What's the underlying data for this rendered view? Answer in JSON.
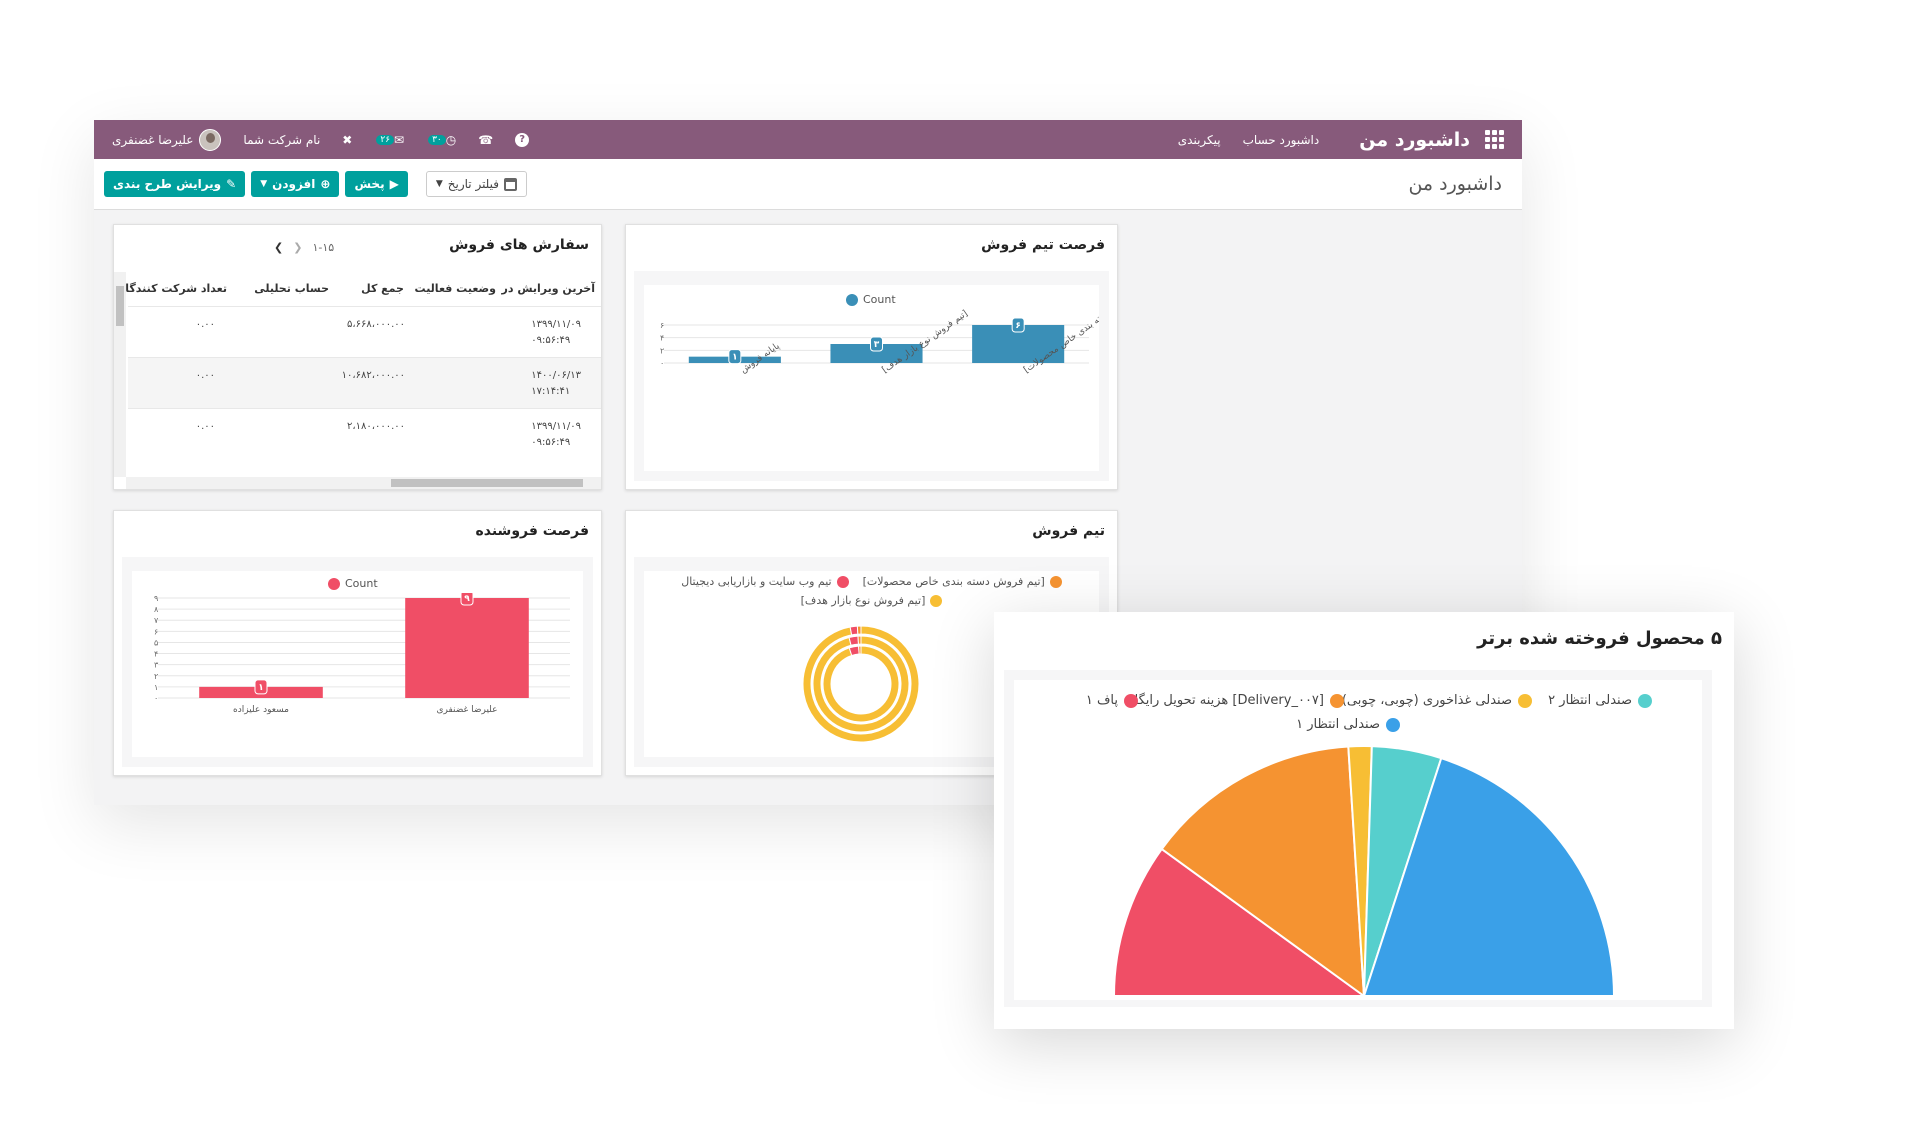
{
  "navbar": {
    "title": "داشبورد من",
    "menu": [
      "داشبورد حساب",
      "پیکربندی"
    ],
    "user_name": "علیرضا غضنفری",
    "company": "نام شرکت شما",
    "activity_count": "۳۰",
    "message_count": "۲۶",
    "help": "?"
  },
  "control_panel": {
    "breadcrumb": "داشبورد من",
    "date_filter": "فیلتر تاریخ",
    "play_label": "پخش",
    "add_label": "افزودن",
    "edit_layout_label": "ویرایش طرح بندی"
  },
  "sales_orders": {
    "title": "سفارش های فروش",
    "pager": "۱-۱۵",
    "columns": [
      "آخرین ویرایش در",
      "وضعیت فعالیت",
      "جمع کل",
      "حساب تحلیلی",
      "تعداد شرکت کنندگان"
    ],
    "rows": [
      {
        "date": "۱۳۹۹/۱۱/۰۹",
        "time": "۰۹:۵۶:۴۹",
        "total": "۵،۶۶۸،۰۰۰.۰۰",
        "participants": "۰.۰۰"
      },
      {
        "date": "۱۴۰۰/۰۶/۱۳",
        "time": "۱۷:۱۴:۴۱",
        "total": "۱۰،۶۸۲،۰۰۰.۰۰",
        "participants": "۰.۰۰"
      },
      {
        "date": "۱۳۹۹/۱۱/۰۹",
        "time": "۰۹:۵۶:۴۹",
        "total": "۲،۱۸۰،۰۰۰.۰۰",
        "participants": "۰.۰۰"
      }
    ]
  },
  "team_opportunity": {
    "title": "فرصت تیم فروش",
    "legend": "Count",
    "color": "#3a8fb7",
    "chart_data": {
      "type": "bar",
      "categories": [
        "پایانه فروش",
        "[تیم فروش نوع بازار هدف]",
        "[تیم فروش دسته بندی خاص محصولات]"
      ],
      "values": [
        1,
        3,
        6
      ],
      "value_labels": [
        "۱",
        "۳",
        "۶"
      ],
      "y_ticks": [
        "۰",
        "۲",
        "۴",
        "۶"
      ],
      "ylim": [
        0,
        6
      ]
    }
  },
  "salesperson_opportunity": {
    "title": "فرصت فروشنده",
    "legend": "Count",
    "color": "#f04e66",
    "chart_data": {
      "type": "bar",
      "categories": [
        "مسعود علیزاده",
        "علیرضا غضنفری"
      ],
      "values": [
        1,
        9
      ],
      "value_labels": [
        "۱",
        "۹"
      ],
      "y_ticks": [
        "۰",
        "۱",
        "۲",
        "۳",
        "۴",
        "۵",
        "۶",
        "۷",
        "۸",
        "۹"
      ],
      "ylim": [
        0,
        9
      ]
    }
  },
  "sales_team": {
    "title": "تیم فروش",
    "legend": [
      {
        "label": "[تیم فروش دسته بندی خاص محصولات]",
        "color": "#f59331"
      },
      {
        "label": "تیم وب سایت و بازاریابی دیجیتال",
        "color": "#f04e66"
      },
      {
        "label": "[تیم فروش نوع بازار هدف]",
        "color": "#f7be34"
      }
    ],
    "chart_data": {
      "type": "pie",
      "rings": [
        [
          {
            "name": "[تیم فروش نوع بازار هدف]",
            "value": 97
          },
          {
            "name": "تیم وب سایت و بازاریابی دیجیتال",
            "value": 2
          },
          {
            "name": "[تیم فروش دسته بندی خاص محصولات]",
            "value": 1
          }
        ],
        [
          {
            "name": "[تیم فروش نوع بازار هدف]",
            "value": 96
          },
          {
            "name": "تیم وب سایت و بازاریابی دیجیتال",
            "value": 3
          },
          {
            "name": "[تیم فروش دسته بندی خاص محصولات]",
            "value": 1
          }
        ],
        [
          {
            "name": "[تیم فروش نوع بازار هدف]",
            "value": 95
          },
          {
            "name": "تیم وب سایت و بازاریابی دیجیتال",
            "value": 4
          },
          {
            "name": "[تیم فروش دسته بندی خاص محصولات]",
            "value": 1
          }
        ]
      ]
    }
  },
  "top_products": {
    "title": "۵ محصول فروخته شده برتر",
    "legend": [
      {
        "label": "صندلی انتظار ۲",
        "color": "#56cfcd"
      },
      {
        "label": "صندلی غذاخوری (چوبی، چوبی)",
        "color": "#f7be34"
      },
      {
        "label": "[Delivery_۰۰۷] هزینه تحویل رایگان",
        "color": "#f59331"
      },
      {
        "label": "پاف ۱",
        "color": "#f04e66"
      },
      {
        "label": "صندلی انتظار ۱",
        "color": "#3aa0e8"
      }
    ],
    "chart_data": {
      "type": "pie",
      "half": true,
      "slices": [
        {
          "name": "پاف ۱",
          "value": 20,
          "color": "#f04e66"
        },
        {
          "name": "[Delivery_۰۰۷] هزینه تحویل رایگان",
          "value": 28,
          "color": "#f59331"
        },
        {
          "name": "صندلی غذاخوری (چوبی، چوبی)",
          "value": 3,
          "color": "#f7be34"
        },
        {
          "name": "صندلی انتظار ۲",
          "value": 9,
          "color": "#56cfcd"
        },
        {
          "name": "صندلی انتظار ۱",
          "value": 40,
          "color": "#3aa0e8"
        }
      ]
    }
  }
}
